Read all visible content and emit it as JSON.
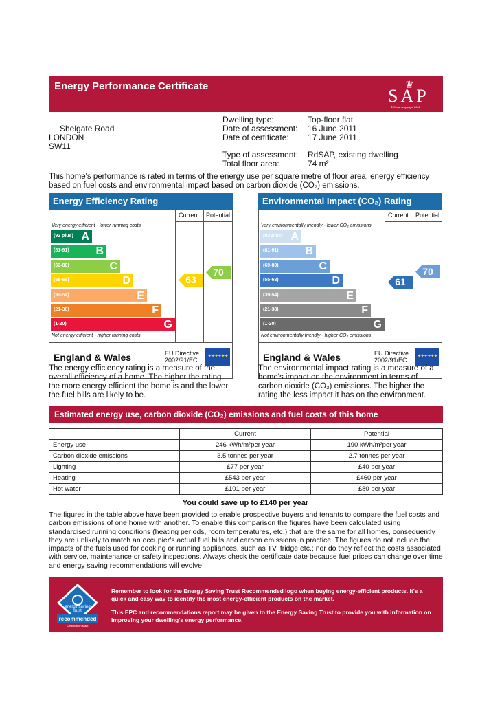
{
  "header": {
    "title": "Energy Performance Certificate",
    "logo": "SAP",
    "logo_copyright": "© Crown copyright 2008"
  },
  "address": {
    "line1": "Shelgate Road",
    "line2": "LONDON",
    "line3": "SW11"
  },
  "details": {
    "dwelling_type_label": "Dwelling type:",
    "dwelling_type": "Top-floor flat",
    "date_assessment_label": "Date of assessment:",
    "date_assessment": "16 June 2011",
    "date_certificate_label": "Date of certificate:",
    "date_certificate": "17 June 2011",
    "assessment_type_label": "Type of assessment:",
    "assessment_type": "RdSAP, existing dwelling",
    "floor_area_label": "Total floor area:",
    "floor_area": "74 m²"
  },
  "intro": "This home's performance is rated in terms of the energy use per square metre of floor area, energy efficiency based on fuel costs and environmental impact based on carbon dioxide (CO₂) emissions.",
  "efficiency": {
    "title": "Energy Efficiency Rating",
    "current_label": "Current",
    "potential_label": "Potential",
    "top_note": "Very energy efficient - lower running costs",
    "bottom_note": "Not energy efficient - higher running costs",
    "bands": [
      {
        "range": "(92 plus)",
        "letter": "A",
        "color": "#008054"
      },
      {
        "range": "(81-91)",
        "letter": "B",
        "color": "#19b459"
      },
      {
        "range": "(69-80)",
        "letter": "C",
        "color": "#8dce46"
      },
      {
        "range": "(55-68)",
        "letter": "D",
        "color": "#ffd500"
      },
      {
        "range": "(39-54)",
        "letter": "E",
        "color": "#fcaa65"
      },
      {
        "range": "(21-38)",
        "letter": "F",
        "color": "#ef8023"
      },
      {
        "range": "(1-20)",
        "letter": "G",
        "color": "#e9153b"
      }
    ],
    "current": "63",
    "current_color": "#ffd500",
    "potential": "70",
    "potential_color": "#8dce46",
    "country": "England & Wales",
    "directive": "EU Directive",
    "directive_no": "2002/91/EC",
    "description": "The energy efficiency rating is a measure of the overall efficiency of a home. The higher the rating the more energy efficient the home is and the lower the fuel bills are likely to be."
  },
  "environment": {
    "title": "Environmental Impact (CO₂) Rating",
    "current_label": "Current",
    "potential_label": "Potential",
    "top_note": "Very environmentally friendly - lower CO₂ emissions",
    "bottom_note": "Not environmentally friendly - higher CO₂ emissions",
    "bands": [
      {
        "range": "(92 plus)",
        "letter": "A",
        "color": "#cfe0f3"
      },
      {
        "range": "(81-91)",
        "letter": "B",
        "color": "#9ec2ea"
      },
      {
        "range": "(69-80)",
        "letter": "C",
        "color": "#6c9fd8"
      },
      {
        "range": "(55-68)",
        "letter": "D",
        "color": "#3d79c4"
      },
      {
        "range": "(39-54)",
        "letter": "E",
        "color": "#a5a5a5"
      },
      {
        "range": "(21-38)",
        "letter": "F",
        "color": "#8a8a8a"
      },
      {
        "range": "(1-20)",
        "letter": "G",
        "color": "#6b6b6b"
      }
    ],
    "current": "61",
    "current_color": "#2f6fb5",
    "potential": "70",
    "potential_color": "#6c9fd8",
    "country": "England & Wales",
    "directive": "EU Directive",
    "directive_no": "2002/91/EC",
    "description": "The environmental impact rating is a measure of a home's impact on the environment in terms of carbon dioxide (CO₂) emissions. The higher the rating the less impact it has on the environment."
  },
  "estimates": {
    "title": "Estimated energy use, carbon dioxide (CO₂) emissions and fuel costs of this home",
    "headers": [
      "",
      "Current",
      "Potential"
    ],
    "rows": [
      [
        "Energy use",
        "246 kWh/m²per year",
        "190 kWh/m²per year"
      ],
      [
        "Carbon dioxide emissions",
        "3.5 tonnes per year",
        "2.7 tonnes per year"
      ],
      [
        "Lighting",
        "£77 per year",
        "£40 per year"
      ],
      [
        "Heating",
        "£543 per year",
        "£460 per year"
      ],
      [
        "Hot water",
        "£101 per year",
        "£80 per year"
      ]
    ],
    "savings": "You could save up to £140 per year",
    "explanation": "The figures in the table above have been provided to enable prospective buyers and tenants to compare the fuel costs and carbon emissions of one home with another. To enable this comparison the figures have been calculated using standardised running conditions (heating periods, room temperatures, etc.) that are the same for all homes, consequently they are unlikely to match an occupier's actual fuel bills and carbon emissions in practice. The figures do not include the impacts of the fuels used for cooking or running appliances, such as TV, fridge etc.; nor do they reflect the costs associated with service, maintenance or safety inspections. Always check the certificate date because fuel prices can change over time and energy saving recommendations will evolve."
  },
  "est_box": {
    "logo_text_top": "energy saving trust",
    "logo_text": "recommended",
    "logo_sub": "Certification Mark",
    "msg1": "Remember to look for the Energy Saving Trust Recommended logo when buying energy-efficient products. It's a quick and easy way to identify the most energy-efficient products on the market.",
    "msg2": "This EPC and recommendations report may be given to the Energy Saving Trust to provide you with information on improving your dwelling's energy performance."
  }
}
